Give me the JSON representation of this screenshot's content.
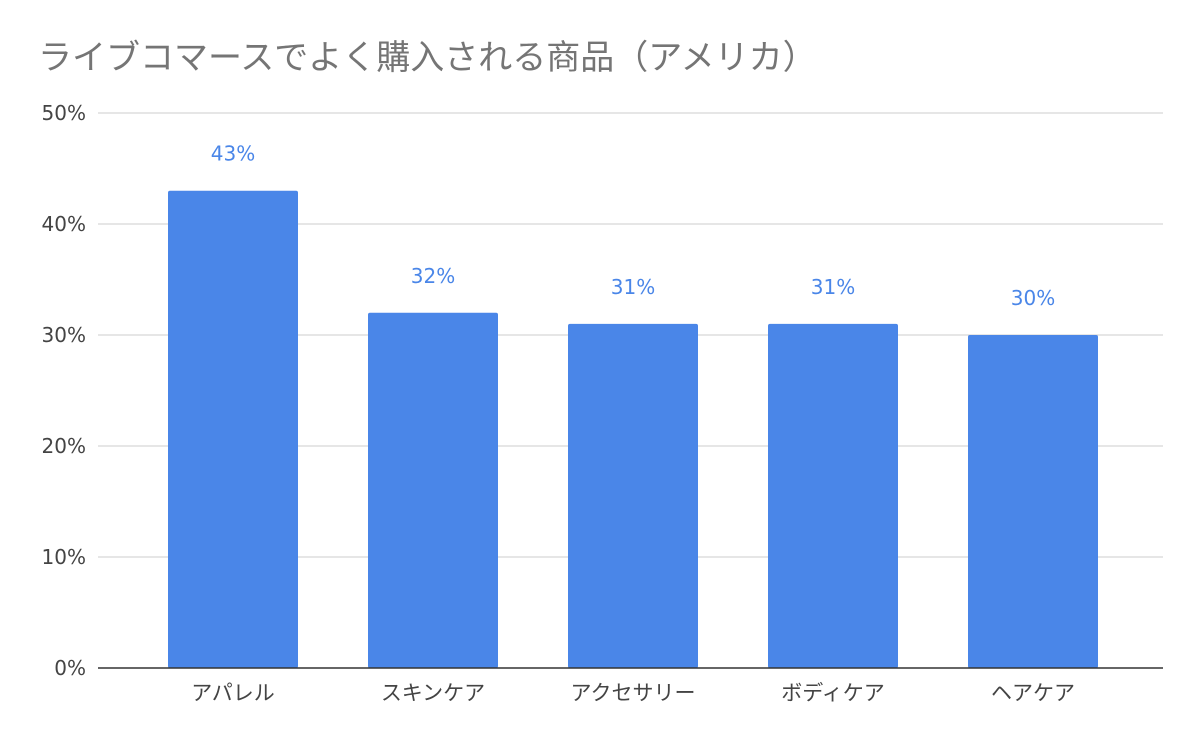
{
  "chart_data": {
    "type": "bar",
    "title": "ライブコマースでよく購入される商品（アメリカ）",
    "categories": [
      "アパレル",
      "スキンケア",
      "アクセサリー",
      "ボディケア",
      "ヘアケア"
    ],
    "values": [
      43,
      32,
      31,
      31,
      30
    ],
    "data_labels": [
      "43%",
      "32%",
      "31%",
      "31%",
      "30%"
    ],
    "y_ticks": [
      "0%",
      "10%",
      "20%",
      "30%",
      "40%",
      "50%"
    ],
    "ylim": [
      0,
      50
    ],
    "grid": true,
    "legend": "none",
    "bar_color": "#4a86e8"
  }
}
